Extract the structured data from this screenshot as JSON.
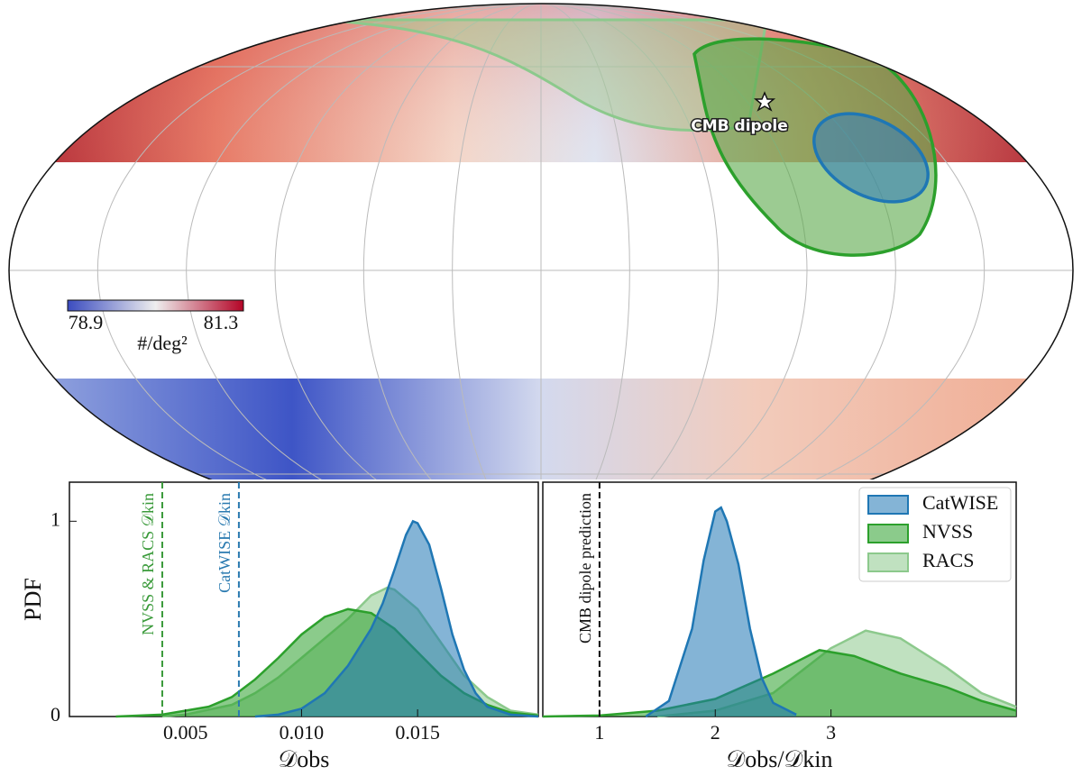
{
  "chart_data": [
    {
      "type": "map",
      "annotation": "CMB dipole",
      "colorbar": {
        "clim": [
          78.9,
          81.3
        ],
        "ticks": [
          78.9,
          81.3
        ],
        "label": "#/deg²"
      }
    },
    {
      "type": "area",
      "xlabel": "𝒟obs",
      "ylabel": "PDF",
      "xlim": [
        0,
        0.0202
      ],
      "ylim": [
        0,
        1.2
      ],
      "xticks": [
        0.005,
        {
          "value": 0.01,
          "label": "0.010"
        },
        0.015
      ],
      "yticks": [
        0,
        1
      ],
      "vlines": [
        {
          "x": 0.004,
          "label": "NVSS & RACS 𝒟kin",
          "color": "#3a9a3a"
        },
        {
          "x": 0.0073,
          "label": "CatWISE 𝒟kin",
          "color": "#2a7ab0"
        }
      ],
      "series": [
        {
          "name": "CatWISE",
          "color": "#1f77b4",
          "x": [
            0.008,
            0.009,
            0.01,
            0.011,
            0.012,
            0.013,
            0.0135,
            0.014,
            0.0145,
            0.0148,
            0.015,
            0.0155,
            0.016,
            0.0165,
            0.017,
            0.0175,
            0.018,
            0.019,
            0.0202
          ],
          "values": [
            0,
            0.01,
            0.04,
            0.12,
            0.26,
            0.45,
            0.58,
            0.75,
            0.93,
            1.0,
            0.99,
            0.88,
            0.66,
            0.42,
            0.24,
            0.12,
            0.05,
            0.01,
            0
          ]
        },
        {
          "name": "NVSS",
          "color": "#2ca02c",
          "x": [
            0.002,
            0.004,
            0.006,
            0.007,
            0.008,
            0.009,
            0.01,
            0.011,
            0.012,
            0.013,
            0.014,
            0.015,
            0.016,
            0.017,
            0.018,
            0.019,
            0.0202
          ],
          "values": [
            0,
            0.01,
            0.05,
            0.1,
            0.19,
            0.3,
            0.42,
            0.51,
            0.55,
            0.53,
            0.45,
            0.33,
            0.21,
            0.12,
            0.06,
            0.02,
            0.005
          ]
        },
        {
          "name": "RACS",
          "color": "#8cc98c",
          "x": [
            0.004,
            0.005,
            0.007,
            0.008,
            0.009,
            0.01,
            0.011,
            0.012,
            0.013,
            0.0137,
            0.014,
            0.015,
            0.016,
            0.017,
            0.018,
            0.019,
            0.0202
          ],
          "values": [
            0,
            0.01,
            0.06,
            0.12,
            0.2,
            0.3,
            0.4,
            0.5,
            0.62,
            0.66,
            0.65,
            0.55,
            0.38,
            0.21,
            0.1,
            0.03,
            0.01
          ]
        }
      ]
    },
    {
      "type": "area",
      "xlabel": "𝒟obs/𝒟kin",
      "xlim": [
        0.51,
        4.6
      ],
      "ylim": [
        0,
        1.2
      ],
      "xticks": [
        1,
        2,
        3
      ],
      "vlines": [
        {
          "x": 1,
          "label": "CMB dipole prediction",
          "color": "#111111"
        }
      ],
      "legend": "upper right",
      "series": [
        {
          "name": "CatWISE",
          "color": "#1f77b4",
          "x": [
            1.4,
            1.6,
            1.8,
            1.9,
            2.0,
            2.05,
            2.1,
            2.2,
            2.3,
            2.4,
            2.5,
            2.7
          ],
          "values": [
            0,
            0.08,
            0.45,
            0.8,
            1.05,
            1.07,
            1.0,
            0.78,
            0.45,
            0.2,
            0.07,
            0.01
          ]
        },
        {
          "name": "NVSS",
          "color": "#2ca02c",
          "x": [
            0.51,
            1,
            1.5,
            2,
            2.5,
            2.9,
            3.2,
            3.6,
            4,
            4.3,
            4.6
          ],
          "values": [
            0,
            0.005,
            0.03,
            0.09,
            0.22,
            0.34,
            0.31,
            0.22,
            0.15,
            0.08,
            0.03
          ]
        },
        {
          "name": "RACS",
          "color": "#8cc98c",
          "x": [
            1.5,
            2,
            2.5,
            3,
            3.3,
            3.6,
            4,
            4.3,
            4.6
          ],
          "values": [
            0,
            0.03,
            0.12,
            0.35,
            0.44,
            0.4,
            0.25,
            0.12,
            0.05
          ]
        }
      ]
    }
  ]
}
